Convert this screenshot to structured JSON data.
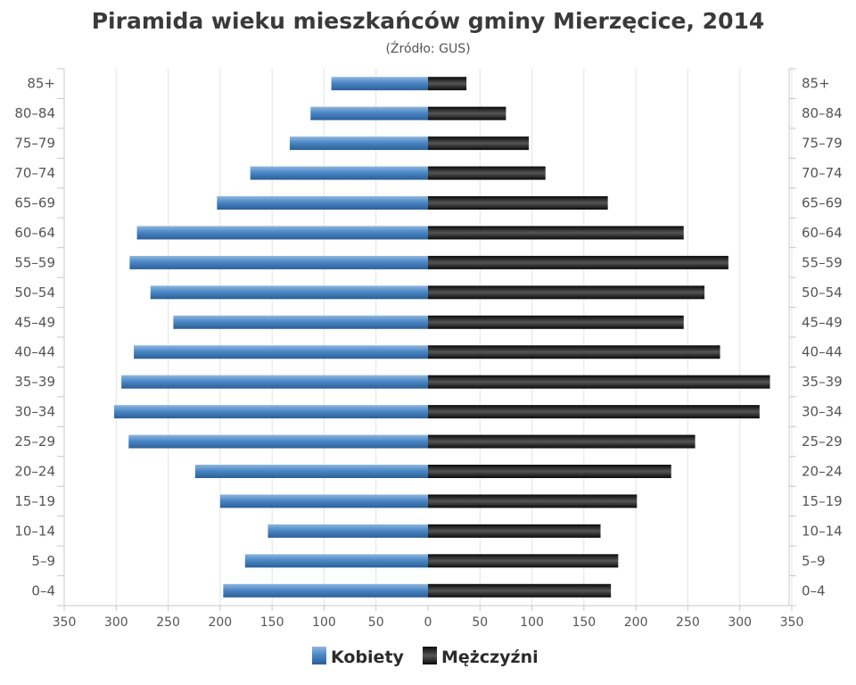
{
  "chart_data": {
    "type": "bar",
    "title": "Piramida wieku mieszkańców gminy Mierzęcice, 2014",
    "subtitle": "(Źródło: GUS)",
    "categories": [
      "85+",
      "80–84",
      "75–79",
      "70–74",
      "65–69",
      "60–64",
      "55–59",
      "50–54",
      "45–49",
      "40–44",
      "35–39",
      "30–34",
      "25–29",
      "20–24",
      "15–19",
      "10–14",
      "5–9",
      "0–4"
    ],
    "series": [
      {
        "name": "Kobiety",
        "values": [
          93,
          113,
          133,
          171,
          203,
          280,
          287,
          267,
          245,
          283,
          295,
          302,
          288,
          224,
          200,
          154,
          176,
          197
        ]
      },
      {
        "name": "Mężczyźni",
        "values": [
          37,
          75,
          97,
          113,
          173,
          246,
          289,
          266,
          246,
          281,
          329,
          319,
          257,
          234,
          201,
          166,
          183,
          176
        ]
      }
    ],
    "tick_labels": [
      "350",
      "300",
      "250",
      "200",
      "150",
      "100",
      "50",
      "0",
      "50",
      "100",
      "150",
      "200",
      "250",
      "300",
      "350"
    ],
    "xlim": [
      -350,
      350
    ],
    "grid": true,
    "legend_position": "bottom-center",
    "colors": {
      "female": "#3d7ab8",
      "male": "#1a1a1a",
      "grid": "#e3e3e3",
      "axis": "#c8c8c8"
    }
  }
}
